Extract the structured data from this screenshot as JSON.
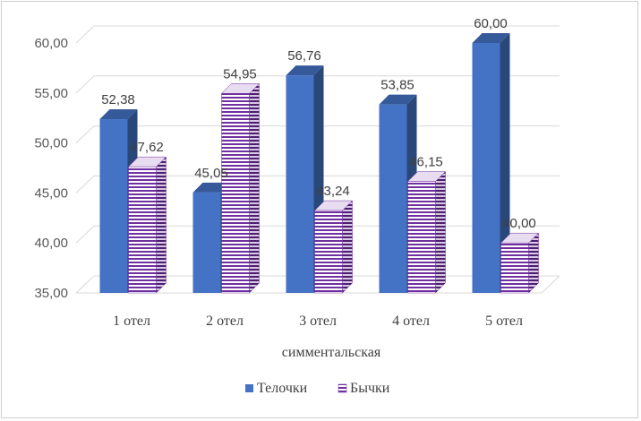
{
  "chart_data": {
    "type": "bar",
    "categories": [
      "1 отел",
      "2 отел",
      "3 отел",
      "4 отел",
      "5 отел"
    ],
    "series": [
      {
        "name": "Телочки",
        "values": [
          52.38,
          45.05,
          56.76,
          53.85,
          60.0
        ],
        "labels": [
          "52,38",
          "45,05",
          "56,76",
          "53,85",
          "60,00"
        ],
        "color": "#4472C4",
        "pattern": "solid"
      },
      {
        "name": "Бычки",
        "values": [
          47.62,
          54.95,
          43.24,
          46.15,
          40.0
        ],
        "labels": [
          "47,62",
          "54,95",
          "43,24",
          "46,15",
          "40,00"
        ],
        "color": "#7030A0",
        "pattern": "horizontal-stripes"
      }
    ],
    "ylim": [
      35,
      60
    ],
    "yticks": [
      "35,00",
      "40,00",
      "45,00",
      "50,00",
      "55,00",
      "60,00"
    ],
    "ytick_values": [
      35,
      40,
      45,
      50,
      55,
      60
    ],
    "xlabel": "симментальская",
    "ylabel": "",
    "grid": true,
    "legend_position": "bottom",
    "style": "3d-clustered-column"
  }
}
